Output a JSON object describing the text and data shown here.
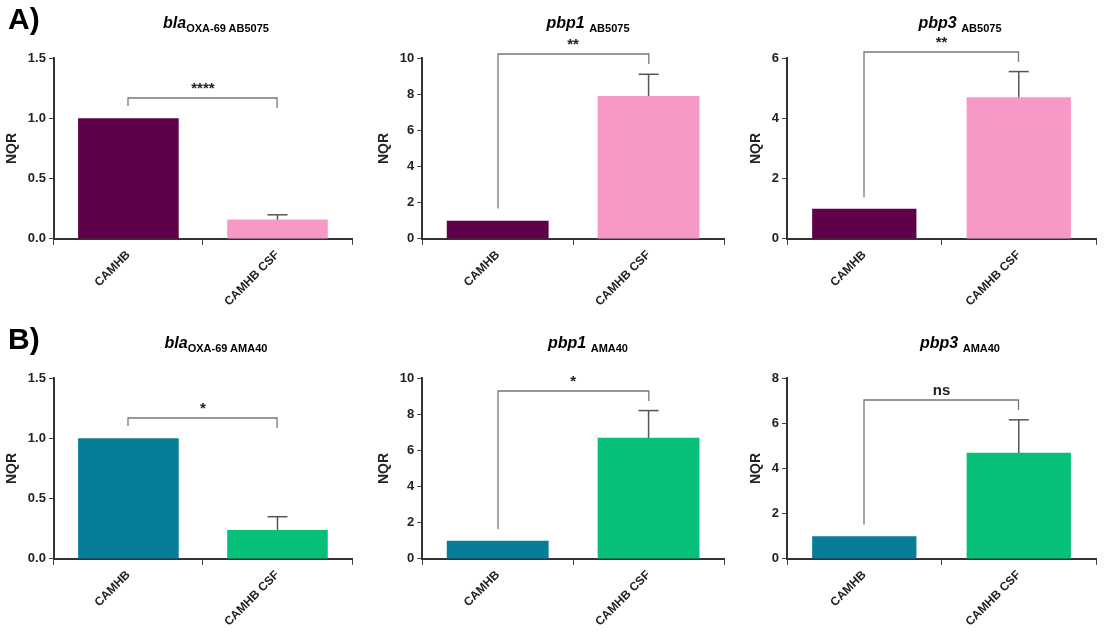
{
  "chart_data": [
    {
      "type": "bar",
      "title": "bla$_{OXA-69 AB5075}$",
      "ylabel": "NQR",
      "annotations": [
        "A)",
        "****"
      ],
      "categories": [
        "CAMHB",
        "CAMHB CSF"
      ],
      "values": [
        1.0,
        0.16
      ],
      "colors": [
        "#5f004a",
        "#f799c6"
      ],
      "errors": [
        null,
        0.04
      ],
      "ylim": [
        0,
        1.5
      ],
      "yticks": [
        {
          "value": 0,
          "label": "0.0"
        },
        {
          "value": 0.5,
          "label": "0.5"
        },
        {
          "value": 1,
          "label": "1.0"
        },
        {
          "value": 1.5,
          "label": "1.5"
        }
      ],
      "grid": false
    },
    {
      "type": "bar",
      "title": "pbp1 $_{AB5075}$",
      "ylabel": "NQR",
      "annotations": [
        "**"
      ],
      "categories": [
        "CAMHB",
        "CAMHB CSF"
      ],
      "values": [
        1.0,
        7.9
      ],
      "colors": [
        "#5f004a",
        "#f799c6"
      ],
      "errors": [
        null,
        1.2
      ],
      "ylim": [
        0,
        10
      ],
      "yticks": [
        0,
        2,
        4,
        6,
        8,
        10
      ],
      "grid": false
    },
    {
      "type": "bar",
      "title": "pbp3 $_{AB5075}$",
      "ylabel": "NQR",
      "annotations": [
        "**"
      ],
      "categories": [
        "CAMHB",
        "CAMHB CSF"
      ],
      "values": [
        1.0,
        4.7
      ],
      "colors": [
        "#5f004a",
        "#f799c6"
      ],
      "errors": [
        null,
        0.85
      ],
      "ylim": [
        0,
        6
      ],
      "yticks": [
        0,
        2,
        4,
        6
      ],
      "grid": false
    },
    {
      "type": "bar",
      "title": "bla$_{OXA-69 AMA40}$",
      "ylabel": "NQR",
      "annotations": [
        "B)",
        "*"
      ],
      "categories": [
        "CAMHB",
        "CAMHB CSF"
      ],
      "values": [
        1.0,
        0.24
      ],
      "colors": [
        "#087d98",
        "#06bf78"
      ],
      "errors": [
        null,
        0.11
      ],
      "ylim": [
        0,
        1.5
      ],
      "yticks": [
        {
          "value": 0,
          "label": "0.0"
        },
        {
          "value": 0.5,
          "label": "0.5"
        },
        {
          "value": 1,
          "label": "1.0"
        },
        {
          "value": 1.5,
          "label": "1.5"
        }
      ],
      "grid": false
    },
    {
      "type": "bar",
      "title": "pbp1 $_{AMA40}$",
      "ylabel": "NQR",
      "annotations": [
        "*"
      ],
      "categories": [
        "CAMHB",
        "CAMHB CSF"
      ],
      "values": [
        1.0,
        6.7
      ],
      "colors": [
        "#087d98",
        "#06bf78"
      ],
      "errors": [
        null,
        1.5
      ],
      "ylim": [
        0,
        10
      ],
      "yticks": [
        0,
        2,
        4,
        6,
        8,
        10
      ],
      "grid": false
    },
    {
      "type": "bar",
      "title": "pbp3 $_{AMA40}$",
      "ylabel": "NQR",
      "annotations": [
        "ns"
      ],
      "categories": [
        "CAMHB",
        "CAMHB CSF"
      ],
      "values": [
        1.0,
        4.7
      ],
      "colors": [
        "#087d98",
        "#06bf78"
      ],
      "errors": [
        null,
        1.45
      ],
      "ylim": [
        0,
        8
      ],
      "yticks": [
        0,
        2,
        4,
        6,
        8
      ],
      "grid": false
    }
  ]
}
